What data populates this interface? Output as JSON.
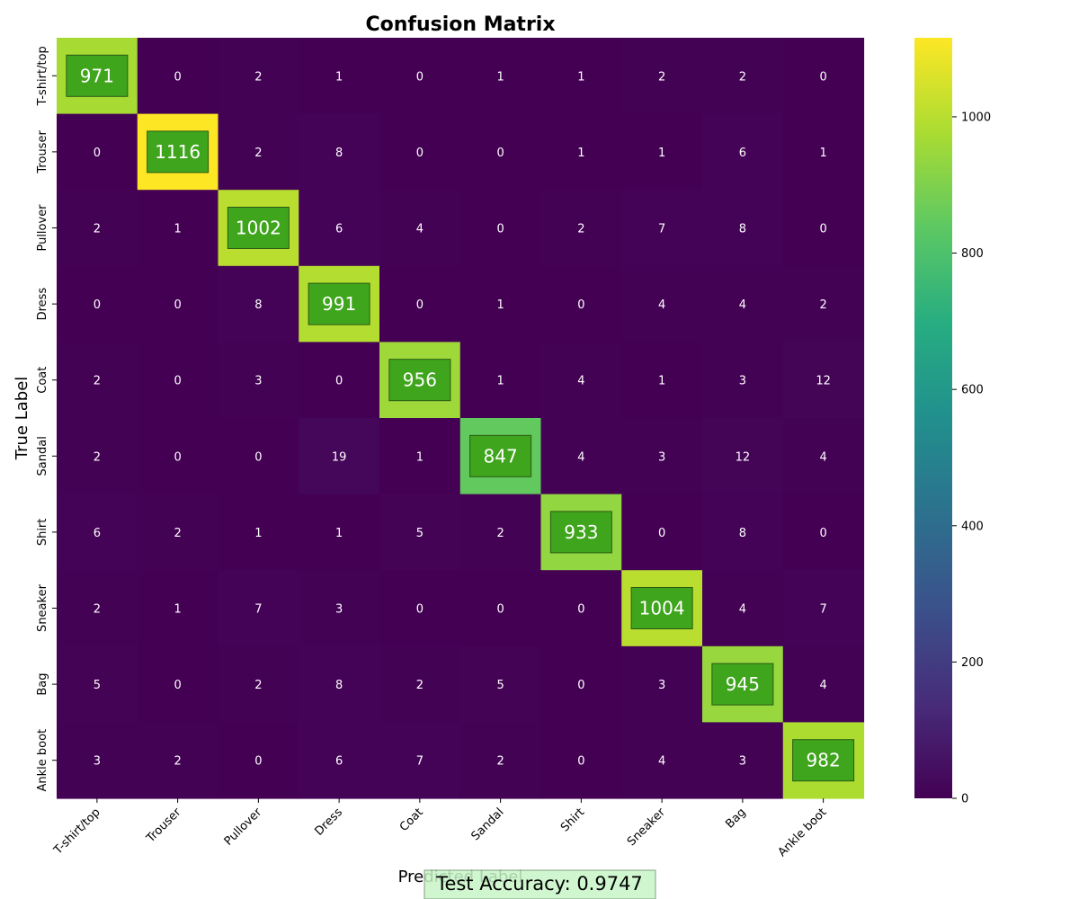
{
  "chart_data": {
    "type": "heatmap",
    "title": "Confusion Matrix",
    "xlabel": "Predicted Label",
    "ylabel": "True Label",
    "x_categories": [
      "T-shirt/top",
      "Trouser",
      "Pullover",
      "Dress",
      "Coat",
      "Sandal",
      "Shirt",
      "Sneaker",
      "Bag",
      "Ankle boot"
    ],
    "y_categories": [
      "T-shirt/top",
      "Trouser",
      "Pullover",
      "Dress",
      "Coat",
      "Sandal",
      "Shirt",
      "Sneaker",
      "Bag",
      "Ankle boot"
    ],
    "values": [
      [
        971,
        0,
        2,
        1,
        0,
        1,
        1,
        2,
        2,
        0
      ],
      [
        0,
        1116,
        2,
        8,
        0,
        0,
        1,
        1,
        6,
        1
      ],
      [
        2,
        1,
        1002,
        6,
        4,
        0,
        2,
        7,
        8,
        0
      ],
      [
        0,
        0,
        8,
        991,
        0,
        1,
        0,
        4,
        4,
        2
      ],
      [
        2,
        0,
        3,
        0,
        956,
        1,
        4,
        1,
        3,
        12
      ],
      [
        2,
        0,
        0,
        19,
        1,
        847,
        4,
        3,
        12,
        4
      ],
      [
        6,
        2,
        1,
        1,
        5,
        2,
        933,
        0,
        8,
        0
      ],
      [
        2,
        1,
        7,
        3,
        0,
        0,
        0,
        1004,
        4,
        7
      ],
      [
        5,
        0,
        2,
        8,
        2,
        5,
        0,
        3,
        945,
        4
      ],
      [
        3,
        2,
        0,
        6,
        7,
        2,
        0,
        4,
        3,
        982
      ]
    ],
    "colormap": "viridis",
    "colorbar": {
      "range": [
        0,
        1116
      ],
      "ticks": [
        0,
        200,
        400,
        600,
        800,
        1000
      ]
    },
    "diagonal_highlight_color": "#3fa51c",
    "annotation": {
      "text": "Test Accuracy: 0.9747",
      "background": "#c8f5c8"
    }
  }
}
